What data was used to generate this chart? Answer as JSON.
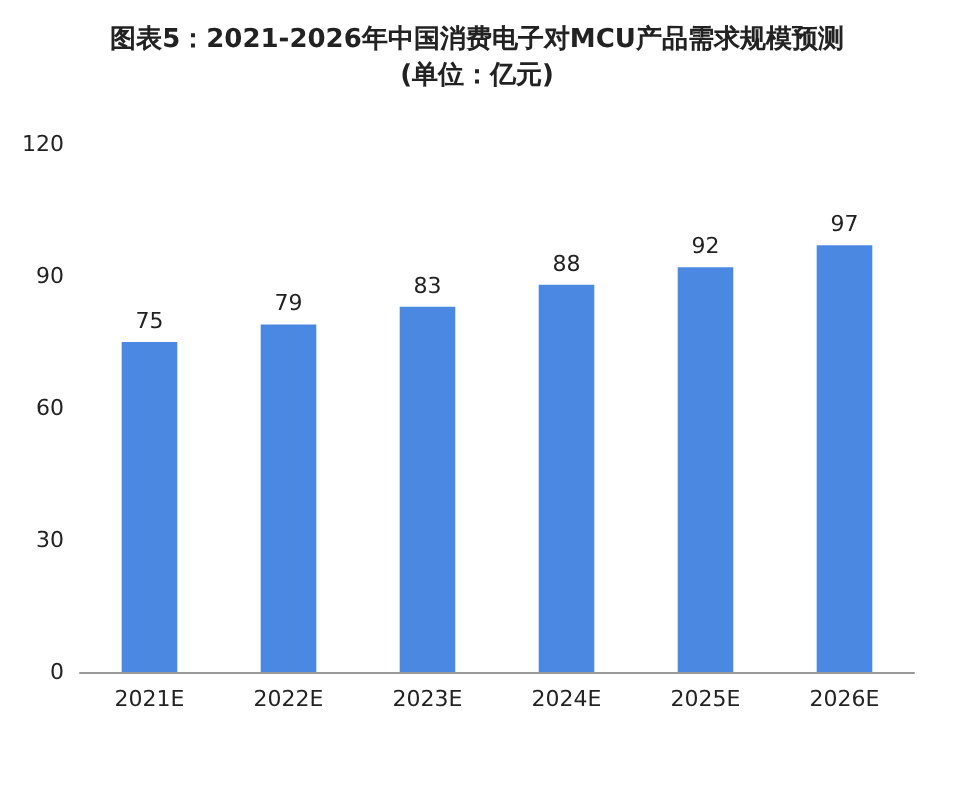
{
  "chart_data": {
    "type": "bar",
    "title": "图表5：2021-2026年中国消费电子对MCU产品需求规模预测\n(单位：亿元)",
    "categories": [
      "2021E",
      "2022E",
      "2023E",
      "2024E",
      "2025E",
      "2026E"
    ],
    "values": [
      75,
      79,
      83,
      88,
      92,
      97
    ],
    "color": "#4a88e2",
    "ylim": [
      0,
      120
    ],
    "yticks": [
      0,
      30,
      60,
      90,
      120
    ],
    "data_labels": true
  }
}
